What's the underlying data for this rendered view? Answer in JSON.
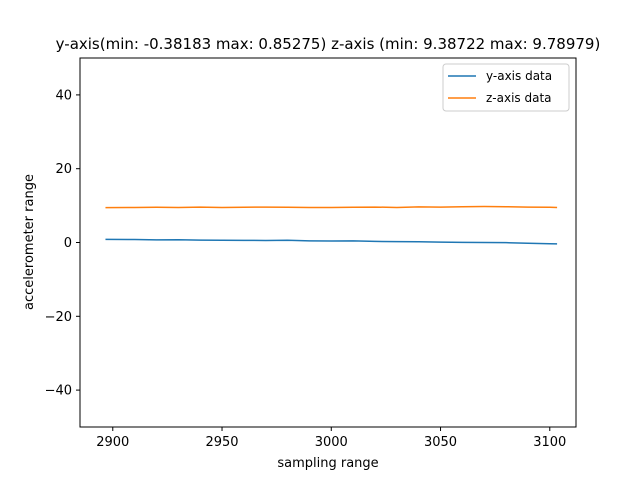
{
  "chart_data": {
    "type": "line",
    "title": "y-axis(min: -0.38183  max: 0.85275) z-axis (min: 9.38722 max: 9.78979)",
    "xlabel": "sampling range",
    "ylabel": "accelerometer range",
    "xlim": [
      2885,
      3112
    ],
    "ylim": [
      -50,
      50
    ],
    "xticks": [
      2900,
      2950,
      3000,
      3050,
      3100
    ],
    "yticks": [
      -40,
      -20,
      0,
      20,
      40
    ],
    "xtick_labels": [
      "2900",
      "2950",
      "3000",
      "3050",
      "3100"
    ],
    "ytick_labels": [
      "−40",
      "−20",
      "0",
      "20",
      "40"
    ],
    "grid": false,
    "legend_position": "top-right",
    "series": [
      {
        "name": "y-axis data",
        "color": "#1f77b4",
        "x": [
          2897,
          2910,
          2920,
          2930,
          2940,
          2950,
          2960,
          2970,
          2980,
          2990,
          3000,
          3010,
          3020,
          3030,
          3040,
          3050,
          3060,
          3070,
          3080,
          3090,
          3100,
          3103
        ],
        "y": [
          0.85,
          0.8,
          0.7,
          0.75,
          0.65,
          0.6,
          0.58,
          0.55,
          0.6,
          0.45,
          0.4,
          0.45,
          0.3,
          0.25,
          0.2,
          0.1,
          0.05,
          0.0,
          -0.05,
          -0.2,
          -0.35,
          -0.38
        ]
      },
      {
        "name": "z-axis data",
        "color": "#ff7f0e",
        "x": [
          2897,
          2910,
          2920,
          2930,
          2940,
          2950,
          2960,
          2970,
          2980,
          2990,
          3000,
          3010,
          3020,
          3030,
          3040,
          3050,
          3060,
          3070,
          3080,
          3090,
          3100,
          3103
        ],
        "y": [
          9.45,
          9.5,
          9.55,
          9.5,
          9.6,
          9.5,
          9.55,
          9.6,
          9.55,
          9.5,
          9.5,
          9.55,
          9.6,
          9.5,
          9.65,
          9.6,
          9.7,
          9.75,
          9.7,
          9.6,
          9.55,
          9.5
        ]
      }
    ]
  }
}
